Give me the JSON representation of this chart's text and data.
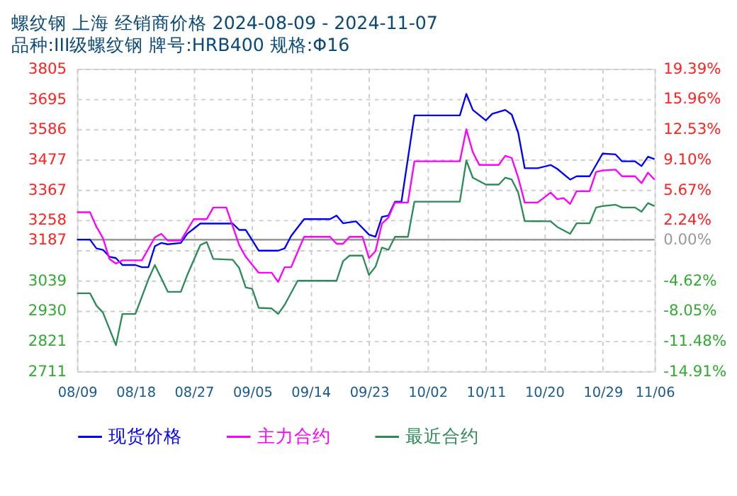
{
  "chart_data": {
    "type": "line",
    "title": "螺纹钢 上海 经销商价格 2024-08-09 - 2024-11-07",
    "subtitle": "品种:III级螺纹钢 牌号:HRB400 规格:Φ16",
    "series": [
      {
        "name": "现货价格",
        "color": "#0000ff",
        "x": [
          "2024-08-09",
          "2024-08-11",
          "2024-08-12",
          "2024-08-13",
          "2024-08-14",
          "2024-08-15",
          "2024-08-16",
          "2024-08-18",
          "2024-08-19",
          "2024-08-20",
          "2024-08-21",
          "2024-08-22",
          "2024-08-23",
          "2024-08-25",
          "2024-08-26",
          "2024-08-28",
          "2024-09-02",
          "2024-09-03",
          "2024-09-04",
          "2024-09-06",
          "2024-09-09",
          "2024-09-10",
          "2024-09-11",
          "2024-09-13",
          "2024-09-17",
          "2024-09-18",
          "2024-09-19",
          "2024-09-21",
          "2024-09-23",
          "2024-09-24",
          "2024-09-25",
          "2024-09-26",
          "2024-09-27",
          "2024-09-28",
          "2024-09-30",
          "2024-10-07",
          "2024-10-08",
          "2024-10-09",
          "2024-10-11",
          "2024-10-12",
          "2024-10-14",
          "2024-10-15",
          "2024-10-16",
          "2024-10-17",
          "2024-10-19",
          "2024-10-21",
          "2024-10-22",
          "2024-10-24",
          "2024-10-25",
          "2024-10-27",
          "2024-10-29",
          "2024-10-31",
          "2024-11-01",
          "2024-11-03",
          "2024-11-04",
          "2024-11-05",
          "2024-11-06"
        ],
        "values": [
          3187,
          3187,
          3155,
          3150,
          3125,
          3120,
          3095,
          3095,
          3087,
          3087,
          3163,
          3175,
          3170,
          3175,
          3208,
          3245,
          3245,
          3222,
          3222,
          3147,
          3147,
          3155,
          3200,
          3261,
          3261,
          3274,
          3246,
          3253,
          3205,
          3197,
          3269,
          3274,
          3324,
          3324,
          3636,
          3636,
          3714,
          3656,
          3618,
          3642,
          3656,
          3639,
          3573,
          3445,
          3445,
          3457,
          3443,
          3404,
          3416,
          3416,
          3498,
          3495,
          3470,
          3470,
          3453,
          3487,
          3478
        ]
      },
      {
        "name": "主力合约",
        "color": "#ff00ff",
        "x": [
          "2024-08-09",
          "2024-08-11",
          "2024-08-12",
          "2024-08-13",
          "2024-08-14",
          "2024-08-15",
          "2024-08-16",
          "2024-08-19",
          "2024-08-21",
          "2024-08-22",
          "2024-08-23",
          "2024-08-25",
          "2024-08-27",
          "2024-08-29",
          "2024-08-30",
          "2024-09-01",
          "2024-09-03",
          "2024-09-04",
          "2024-09-06",
          "2024-09-08",
          "2024-09-09",
          "2024-09-10",
          "2024-09-11",
          "2024-09-13",
          "2024-09-17",
          "2024-09-18",
          "2024-09-19",
          "2024-09-20",
          "2024-09-22",
          "2024-09-23",
          "2024-09-24",
          "2024-09-25",
          "2024-09-26",
          "2024-09-27",
          "2024-09-29",
          "2024-09-30",
          "2024-10-07",
          "2024-10-08",
          "2024-10-09",
          "2024-10-10",
          "2024-10-13",
          "2024-10-14",
          "2024-10-15",
          "2024-10-16",
          "2024-10-17",
          "2024-10-19",
          "2024-10-21",
          "2024-10-22",
          "2024-10-23",
          "2024-10-24",
          "2024-10-25",
          "2024-10-27",
          "2024-10-28",
          "2024-10-29",
          "2024-10-31",
          "2024-11-01",
          "2024-11-03",
          "2024-11-04",
          "2024-11-05",
          "2024-11-06"
        ],
        "values": [
          3286,
          3286,
          3233,
          3192,
          3117,
          3100,
          3112,
          3112,
          3195,
          3208,
          3183,
          3183,
          3261,
          3261,
          3303,
          3303,
          3167,
          3125,
          3067,
          3067,
          3034,
          3087,
          3087,
          3197,
          3197,
          3172,
          3172,
          3197,
          3197,
          3120,
          3145,
          3245,
          3267,
          3321,
          3321,
          3470,
          3470,
          3586,
          3503,
          3457,
          3457,
          3490,
          3482,
          3411,
          3321,
          3321,
          3357,
          3333,
          3337,
          3316,
          3362,
          3362,
          3432,
          3437,
          3440,
          3416,
          3416,
          3391,
          3429,
          3404
        ]
      },
      {
        "name": "最近合约",
        "color": "#2e8b57",
        "x": [
          "2024-08-09",
          "2024-08-11",
          "2024-08-12",
          "2024-08-13",
          "2024-08-15",
          "2024-08-16",
          "2024-08-18",
          "2024-08-20",
          "2024-08-21",
          "2024-08-23",
          "2024-08-25",
          "2024-08-26",
          "2024-08-28",
          "2024-08-29",
          "2024-08-30",
          "2024-09-02",
          "2024-09-03",
          "2024-09-04",
          "2024-09-05",
          "2024-09-06",
          "2024-09-08",
          "2024-09-09",
          "2024-09-10",
          "2024-09-12",
          "2024-09-18",
          "2024-09-19",
          "2024-09-20",
          "2024-09-22",
          "2024-09-23",
          "2024-09-24",
          "2024-09-25",
          "2024-09-26",
          "2024-09-27",
          "2024-09-29",
          "2024-09-30",
          "2024-10-07",
          "2024-10-08",
          "2024-10-09",
          "2024-10-11",
          "2024-10-13",
          "2024-10-14",
          "2024-10-15",
          "2024-10-16",
          "2024-10-17",
          "2024-10-21",
          "2024-10-22",
          "2024-10-24",
          "2024-10-25",
          "2024-10-27",
          "2024-10-28",
          "2024-10-29",
          "2024-10-31",
          "2024-11-01",
          "2024-11-03",
          "2024-11-04",
          "2024-11-05",
          "2024-11-06"
        ],
        "values": [
          2993,
          2993,
          2948,
          2923,
          2805,
          2918,
          2918,
          3043,
          3095,
          2998,
          2998,
          3059,
          3167,
          3178,
          3117,
          3114,
          3084,
          3014,
          3009,
          2940,
          2938,
          2918,
          2951,
          3038,
          3038,
          3109,
          3129,
          3129,
          3059,
          3089,
          3158,
          3150,
          3197,
          3197,
          3324,
          3324,
          3473,
          3411,
          3386,
          3386,
          3411,
          3404,
          3357,
          3254,
          3253,
          3233,
          3208,
          3246,
          3246,
          3303,
          3308,
          3313,
          3303,
          3303,
          3288,
          3319,
          3308
        ]
      }
    ],
    "xlim": [
      "2024-08-09",
      "2024-11-06"
    ],
    "xticks": [
      {
        "value": "2024-08-09",
        "label": "08/09"
      },
      {
        "value": "2024-08-18",
        "label": "08/18"
      },
      {
        "value": "2024-08-27",
        "label": "08/27"
      },
      {
        "value": "2024-09-05",
        "label": "09/05"
      },
      {
        "value": "2024-09-14",
        "label": "09/14"
      },
      {
        "value": "2024-09-23",
        "label": "09/23"
      },
      {
        "value": "2024-10-02",
        "label": "10/02"
      },
      {
        "value": "2024-10-11",
        "label": "10/11"
      },
      {
        "value": "2024-10-20",
        "label": "10/20"
      },
      {
        "value": "2024-10-29",
        "label": "10/29"
      },
      {
        "value": "2024-11-06",
        "label": "11/06"
      }
    ],
    "ylim": [
      2711,
      3805
    ],
    "yticks": [
      2711,
      2821,
      2930,
      3039,
      {
        "value": 3148,
        "label": null
      },
      3187,
      3258,
      3367,
      3477,
      3586,
      3695,
      3805
    ],
    "y2lim": [
      -14.91,
      19.39
    ],
    "y2ticks": [
      {
        "value": -14.91,
        "label": "-14.91%"
      },
      {
        "value": -11.48,
        "label": "-11.48%"
      },
      {
        "value": -8.05,
        "label": "-8.05%"
      },
      {
        "value": -4.62,
        "label": "-4.62%"
      },
      {
        "value": 0,
        "label": "0.00%"
      },
      {
        "value": 2.24,
        "label": "2.24%"
      },
      {
        "value": 5.67,
        "label": "5.67%"
      },
      {
        "value": 9.1,
        "label": "9.10%"
      },
      {
        "value": 12.53,
        "label": "12.53%"
      },
      {
        "value": 15.96,
        "label": "15.96%"
      },
      {
        "value": 19.39,
        "label": "19.39%"
      }
    ],
    "ref_lines": [
      {
        "axis": "y2",
        "value": 0,
        "color": "#999999",
        "line_style": "solid"
      }
    ],
    "grid": true,
    "legend": "bottom",
    "marker": "none",
    "line_style": "solid"
  }
}
